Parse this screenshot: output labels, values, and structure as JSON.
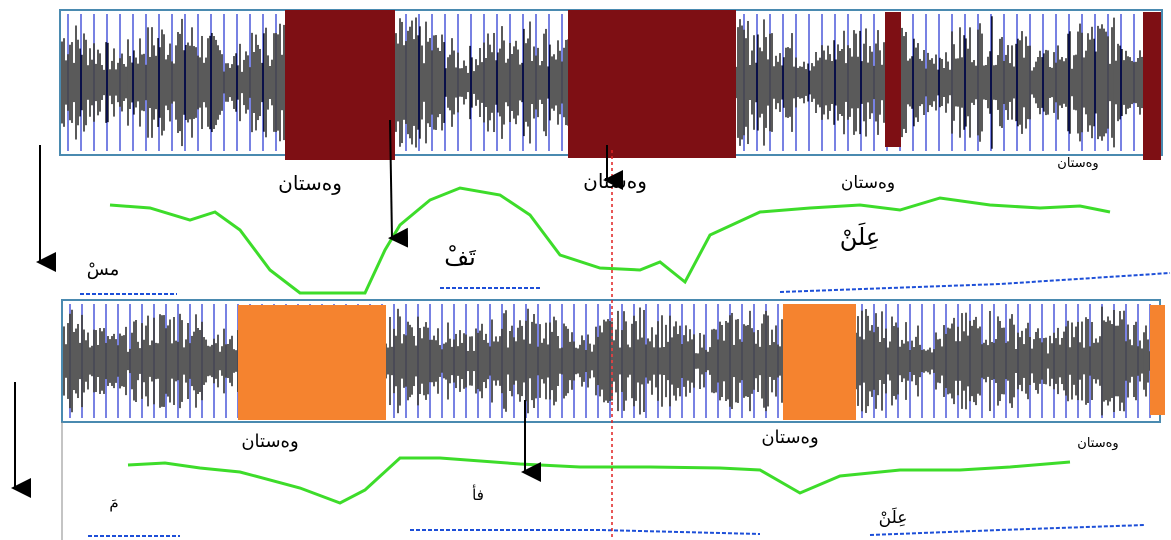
{
  "panels": [
    {
      "labels": [
        "وەستان",
        "وەستان",
        "وەستان",
        "وەستان"
      ],
      "syllables": [
        "مسْ",
        "تَفْ",
        "عِلَنْ"
      ]
    },
    {
      "labels": [
        "وەستان",
        "وەستان",
        "وەستان"
      ],
      "syllables": [
        "مَ",
        "فأ",
        "عِلَنْ"
      ]
    }
  ]
}
